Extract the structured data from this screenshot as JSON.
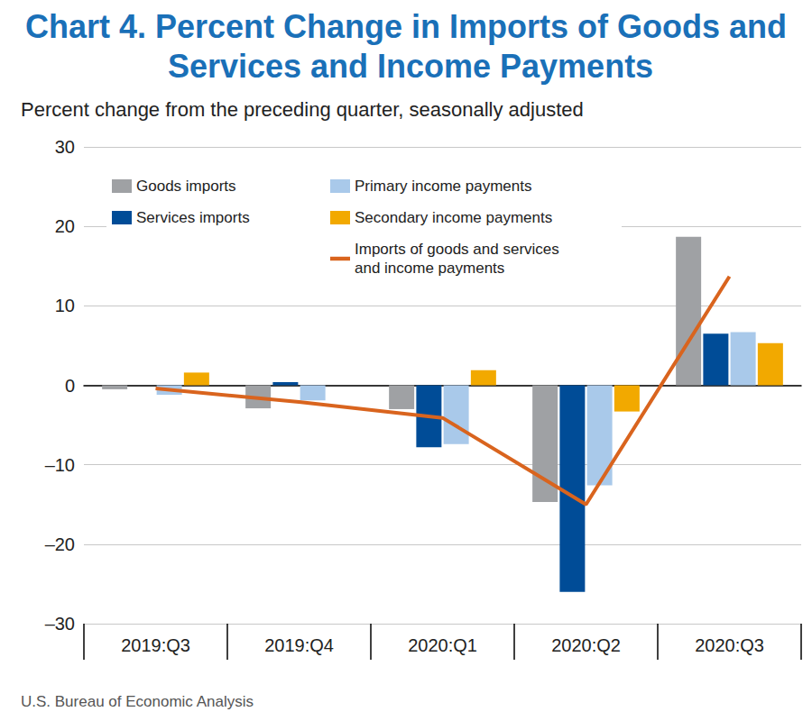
{
  "chart_data": {
    "type": "bar",
    "title": "Chart 4. Percent Change in Imports of Goods and Services and Income Payments",
    "subtitle": "Percent change from the preceding quarter, seasonally adjusted",
    "source": "U.S. Bureau of Economic Analysis",
    "categories": [
      "2019:Q3",
      "2019:Q4",
      "2020:Q1",
      "2020:Q2",
      "2020:Q3"
    ],
    "series": [
      {
        "name": "Goods imports",
        "type": "bar",
        "color": "#9fa1a4",
        "values": [
          -0.5,
          -2.9,
          -3.0,
          -14.7,
          18.7
        ]
      },
      {
        "name": "Services imports",
        "type": "bar",
        "color": "#004c97",
        "values": [
          0.0,
          0.4,
          -7.8,
          -26.0,
          6.5
        ]
      },
      {
        "name": "Primary income payments",
        "type": "bar",
        "color": "#a9c9ea",
        "values": [
          -1.2,
          -1.9,
          -7.4,
          -12.6,
          6.7
        ]
      },
      {
        "name": "Secondary income payments",
        "type": "bar",
        "color": "#f2a900",
        "values": [
          1.6,
          0.0,
          1.9,
          -3.3,
          5.3
        ]
      },
      {
        "name": "Imports of goods and services and income payments",
        "type": "line",
        "color": "#d9641e",
        "values": [
          -0.4,
          -2.1,
          -4.1,
          -15.0,
          13.7
        ]
      }
    ],
    "ylim": [
      -30,
      30
    ],
    "yticks": [
      {
        "value": -30,
        "label": "–30"
      },
      {
        "value": -20,
        "label": "–20"
      },
      {
        "value": -10,
        "label": "–10"
      },
      0,
      10,
      20,
      30
    ],
    "grid": true,
    "legend": "upper left",
    "data_labels": false
  }
}
